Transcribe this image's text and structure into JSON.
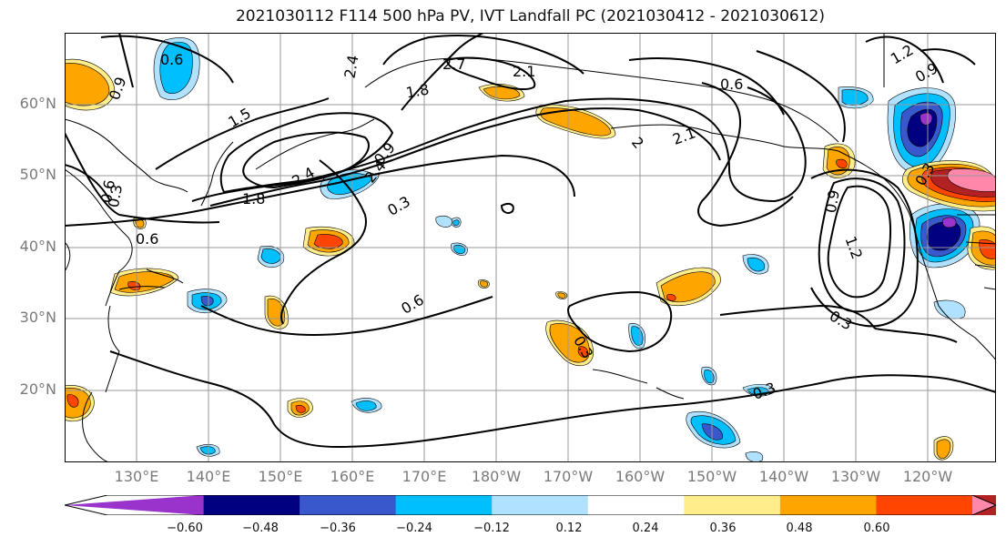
{
  "title": "2021030112 F114 500 hPa PV, IVT Landfall PC (2021030412 - 2021030612)",
  "lat_labels": [
    "60°N",
    "50°N",
    "40°N",
    "30°N",
    "20°N"
  ],
  "lon_labels": [
    "130°E",
    "140°E",
    "150°E",
    "160°E",
    "170°E",
    "180°W",
    "170°W",
    "160°W",
    "150°W",
    "140°W",
    "130°W",
    "120°W"
  ],
  "contour_labels": [
    "0.6",
    "0.6",
    "0.9",
    "1.5",
    "1.8",
    "1.8",
    "2.4",
    "2.4",
    "2.4",
    "2.7",
    "2.1",
    "2.1",
    "2",
    "0.9",
    "0.3",
    "0.6",
    "0.6",
    "0.3",
    "0.3",
    "0.9",
    "1.2",
    "0.3",
    "0.3",
    "1.2",
    "0.9",
    "0.3",
    "0.6"
  ],
  "colorbar": {
    "colors": [
      "#9933cc",
      "#000080",
      "#3858cc",
      "#00bfff",
      "#b0e2ff",
      "#ffffff",
      "#ffec8b",
      "#ffa500",
      "#ff4500",
      "#b22222",
      "#ff88aa"
    ],
    "tick_labels": [
      "−0.60",
      "−0.48",
      "−0.36",
      "−0.24",
      "−0.12",
      "0.12",
      "0.24",
      "0.36",
      "0.48",
      "0.60"
    ]
  },
  "map_colors": {
    "neg_strong": "#000080",
    "neg_mid": "#3858cc",
    "neg": "#00bfff",
    "neg_light": "#b0e2ff",
    "pos_light": "#ffec8b",
    "pos": "#ffa500",
    "pos_mid": "#ff4500",
    "pos_strong": "#b22222",
    "pos_max": "#ff88aa",
    "contour": "#000000",
    "grid": "#999999",
    "coast": "#000000"
  }
}
